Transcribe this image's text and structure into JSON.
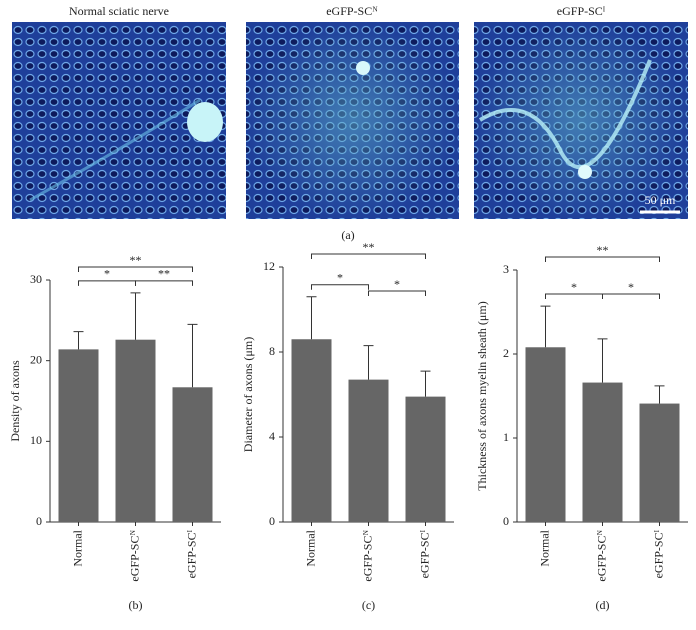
{
  "figure_a": {
    "captions": [
      "Normal sciatic nerve",
      "eGFP-SCᴺ",
      "eGFP-SCᴵ"
    ],
    "scale_bar": "50 μm",
    "label": "(a)"
  },
  "chart_data": [
    {
      "type": "bar",
      "y_label": "Density of axons",
      "panel_label": "(b)",
      "categories": [
        "Normal",
        "eGFP-SCᴺ",
        "eGFP-SCᴵ"
      ],
      "values": [
        21.4,
        22.6,
        16.7
      ],
      "errors": [
        2.2,
        5.8,
        7.8
      ],
      "color": "#666666",
      "ylim": [
        0,
        30
      ],
      "yticks": [
        0,
        10,
        20,
        30
      ],
      "significance": [
        {
          "groups": [
            0,
            1
          ],
          "label": "*"
        },
        {
          "groups": [
            1,
            2
          ],
          "label": "**"
        },
        {
          "groups": [
            0,
            2
          ],
          "label": "**"
        }
      ]
    },
    {
      "type": "bar",
      "y_label": "Diameter of axons (μm)",
      "panel_label": "(c)",
      "categories": [
        "Normal",
        "eGFP-SCᴺ",
        "eGFP-SCᴵ"
      ],
      "values": [
        8.6,
        6.7,
        5.9
      ],
      "errors": [
        2.0,
        1.6,
        1.2
      ],
      "color": "#666666",
      "ylim": [
        0,
        12
      ],
      "yticks": [
        0,
        4,
        8,
        12
      ],
      "significance": [
        {
          "groups": [
            0,
            1
          ],
          "label": "*"
        },
        {
          "groups": [
            1,
            2
          ],
          "label": "*"
        },
        {
          "groups": [
            0,
            2
          ],
          "label": "**"
        }
      ]
    },
    {
      "type": "bar",
      "y_label": "Thickness of axons myelin sheath (μm)",
      "panel_label": "(d)",
      "categories": [
        "Normal",
        "eGFP-SCᴺ",
        "eGFP-SCᴵ"
      ],
      "values": [
        2.08,
        1.66,
        1.41
      ],
      "errors": [
        0.49,
        0.52,
        0.21
      ],
      "color": "#666666",
      "ylim": [
        0,
        3
      ],
      "yticks": [
        0,
        1,
        2,
        3
      ],
      "significance": [
        {
          "groups": [
            0,
            1
          ],
          "label": "*"
        },
        {
          "groups": [
            1,
            2
          ],
          "label": "*"
        },
        {
          "groups": [
            0,
            2
          ],
          "label": "**"
        }
      ]
    }
  ]
}
